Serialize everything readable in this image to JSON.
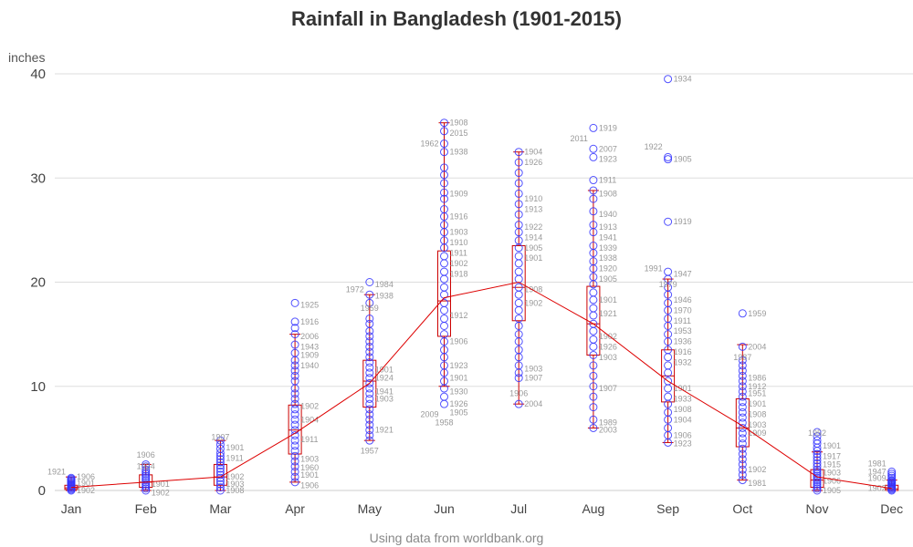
{
  "chart_data": {
    "type": "box",
    "title": "Rainfall in Bangladesh (1901-2015)",
    "footnote": "Using data from worldbank.org",
    "ylabel": "inches",
    "xlabel": "",
    "ylim": [
      0,
      40
    ],
    "yticks": [
      0,
      10,
      20,
      30,
      40
    ],
    "grid": true,
    "categories": [
      "Jan",
      "Feb",
      "Mar",
      "Apr",
      "May",
      "Jun",
      "Jul",
      "Aug",
      "Sep",
      "Oct",
      "Nov",
      "Dec"
    ],
    "colors": {
      "points": "#3333ff",
      "box": "#cc0000",
      "mean_line": "#dd0000",
      "labels": "#999999",
      "grid": "#dddddd"
    },
    "boxes": [
      {
        "month": "Jan",
        "min": 0.0,
        "q1": 0.1,
        "median": 0.25,
        "q3": 0.5,
        "max": 1.3
      },
      {
        "month": "Feb",
        "min": 0.0,
        "q1": 0.3,
        "median": 0.8,
        "q3": 1.5,
        "max": 2.5
      },
      {
        "month": "Mar",
        "min": 0.0,
        "q1": 0.5,
        "median": 1.3,
        "q3": 2.5,
        "max": 4.8
      },
      {
        "month": "Apr",
        "min": 0.8,
        "q1": 3.5,
        "median": 5.8,
        "q3": 8.2,
        "max": 15.0
      },
      {
        "month": "May",
        "min": 4.8,
        "q1": 8.0,
        "median": 10.5,
        "q3": 12.5,
        "max": 18.8
      },
      {
        "month": "Jun",
        "min": 10.0,
        "q1": 14.8,
        "median": 18.2,
        "q3": 23.0,
        "max": 35.3
      },
      {
        "month": "Jul",
        "min": 8.3,
        "q1": 16.3,
        "median": 19.5,
        "q3": 23.5,
        "max": 32.5
      },
      {
        "month": "Aug",
        "min": 6.0,
        "q1": 13.0,
        "median": 16.0,
        "q3": 19.6,
        "max": 28.8
      },
      {
        "month": "Sep",
        "min": 4.6,
        "q1": 8.5,
        "median": 11.0,
        "q3": 13.5,
        "max": 20.3
      },
      {
        "month": "Oct",
        "min": 1.0,
        "q1": 4.2,
        "median": 6.0,
        "q3": 8.8,
        "max": 14.0
      },
      {
        "month": "Nov",
        "min": 0.0,
        "q1": 0.3,
        "median": 1.0,
        "q3": 2.0,
        "max": 3.7
      },
      {
        "month": "Dec",
        "min": 0.0,
        "q1": 0.0,
        "median": 0.15,
        "q3": 0.5,
        "max": 1.0
      }
    ],
    "means": [
      0.3,
      0.8,
      1.3,
      5.5,
      10.3,
      18.5,
      20.0,
      16.0,
      10.5,
      6.2,
      1.3,
      0.2
    ],
    "points": [
      [
        0.0,
        0.1,
        0.2,
        0.3,
        0.4,
        0.5,
        0.6,
        0.7,
        0.8,
        0.9,
        1.0,
        1.1,
        1.2
      ],
      [
        0.0,
        0.2,
        0.4,
        0.6,
        0.8,
        1.0,
        1.2,
        1.4,
        1.6,
        1.8,
        2.0,
        2.3,
        2.5
      ],
      [
        0.0,
        0.3,
        0.6,
        0.9,
        1.2,
        1.5,
        1.8,
        2.1,
        2.4,
        2.7,
        3.0,
        3.3,
        3.6,
        4.0,
        4.4,
        4.8
      ],
      [
        0.8,
        1.3,
        1.8,
        2.3,
        2.8,
        3.3,
        3.8,
        4.3,
        4.8,
        5.3,
        5.8,
        6.3,
        6.8,
        7.3,
        7.8,
        8.3,
        8.8,
        9.3,
        9.8,
        10.5,
        11.0,
        11.5,
        12.0,
        12.5,
        13.2,
        14.0,
        15.0,
        15.6,
        16.2,
        18.0
      ],
      [
        4.8,
        5.3,
        5.8,
        6.3,
        6.8,
        7.3,
        7.8,
        8.3,
        8.8,
        9.3,
        9.8,
        10.3,
        10.8,
        11.3,
        11.8,
        12.3,
        12.8,
        13.3,
        13.8,
        14.3,
        14.8,
        15.3,
        16.0,
        16.5,
        18.0,
        18.8,
        20.0
      ],
      [
        8.3,
        9.0,
        9.8,
        10.5,
        11.3,
        12.0,
        12.8,
        13.5,
        14.3,
        15.0,
        15.8,
        16.5,
        17.3,
        18.0,
        18.8,
        19.5,
        20.3,
        21.0,
        21.8,
        22.5,
        23.3,
        24.0,
        24.8,
        25.5,
        26.3,
        27.0,
        28.0,
        28.6,
        29.5,
        30.3,
        31.0,
        32.5,
        33.3,
        34.5,
        35.3
      ],
      [
        8.3,
        10.8,
        11.3,
        12.0,
        12.8,
        13.5,
        14.3,
        15.0,
        15.8,
        16.5,
        17.3,
        18.0,
        18.8,
        19.5,
        20.3,
        21.0,
        21.8,
        22.5,
        23.3,
        24.0,
        24.8,
        25.5,
        26.5,
        27.5,
        28.5,
        29.5,
        30.5,
        31.5,
        32.5
      ],
      [
        6.0,
        6.8,
        8.0,
        9.0,
        10.0,
        11.0,
        12.0,
        13.0,
        13.8,
        14.5,
        15.3,
        16.0,
        16.8,
        17.5,
        18.3,
        19.0,
        19.8,
        20.5,
        21.3,
        22.0,
        22.8,
        23.5,
        24.8,
        25.5,
        26.8,
        28.0,
        28.8,
        29.8,
        32.0,
        32.8,
        34.8
      ],
      [
        4.6,
        5.3,
        6.0,
        6.8,
        7.5,
        8.3,
        9.0,
        9.8,
        10.5,
        11.3,
        12.0,
        12.8,
        13.5,
        14.3,
        15.0,
        15.8,
        16.5,
        17.3,
        18.0,
        18.8,
        19.5,
        20.3,
        21.0,
        25.8,
        31.8,
        32.0,
        39.5
      ],
      [
        1.0,
        1.5,
        2.0,
        2.5,
        3.0,
        3.5,
        4.0,
        4.5,
        5.0,
        5.5,
        6.0,
        6.5,
        7.0,
        7.5,
        8.0,
        8.5,
        9.0,
        9.5,
        10.0,
        10.5,
        11.0,
        11.5,
        12.0,
        12.5,
        13.8,
        17.0
      ],
      [
        0.0,
        0.2,
        0.4,
        0.6,
        0.8,
        1.0,
        1.2,
        1.4,
        1.6,
        1.8,
        2.0,
        2.3,
        2.6,
        2.9,
        3.2,
        3.5,
        3.8,
        4.1,
        4.5,
        4.8,
        5.2,
        5.6
      ],
      [
        0.0,
        0.1,
        0.2,
        0.3,
        0.4,
        0.5,
        0.6,
        0.7,
        0.8,
        0.9,
        1.0,
        1.2,
        1.4,
        1.6,
        1.8
      ]
    ],
    "labels": [
      [
        {
          "t": "1921",
          "v": 1.8,
          "side": "l"
        },
        {
          "t": "1906",
          "v": 1.3,
          "side": "r"
        },
        {
          "t": "1901",
          "v": 0.7,
          "side": "r"
        },
        {
          "t": "1902",
          "v": 0.0,
          "side": "r"
        }
      ],
      [
        {
          "t": "1906",
          "v": 3.4,
          "side": "c"
        },
        {
          "t": "1924",
          "v": 2.3,
          "side": "c"
        },
        {
          "t": "1901",
          "v": 0.6,
          "side": "r"
        },
        {
          "t": "1902",
          "v": -0.2,
          "side": "r"
        }
      ],
      [
        {
          "t": "1907",
          "v": 5.1,
          "side": "c"
        },
        {
          "t": "1901",
          "v": 4.1,
          "side": "r"
        },
        {
          "t": "1911",
          "v": 3.1,
          "side": "r"
        },
        {
          "t": "1902",
          "v": 1.3,
          "side": "r"
        },
        {
          "t": "1903",
          "v": 0.6,
          "side": "r"
        },
        {
          "t": "1908",
          "v": 0.0,
          "side": "r"
        }
      ],
      [
        {
          "t": "1925",
          "v": 17.8,
          "side": "r"
        },
        {
          "t": "1916",
          "v": 16.2,
          "side": "r"
        },
        {
          "t": "2006",
          "v": 14.8,
          "side": "r"
        },
        {
          "t": "1943",
          "v": 13.8,
          "side": "r"
        },
        {
          "t": "1909",
          "v": 13.0,
          "side": "r"
        },
        {
          "t": "1940",
          "v": 12.0,
          "side": "r"
        },
        {
          "t": "1902",
          "v": 8.1,
          "side": "r"
        },
        {
          "t": "1904",
          "v": 6.8,
          "side": "r"
        },
        {
          "t": "1911",
          "v": 4.9,
          "side": "r"
        },
        {
          "t": "1903",
          "v": 3.0,
          "side": "r"
        },
        {
          "t": "1960",
          "v": 2.2,
          "side": "r"
        },
        {
          "t": "1901",
          "v": 1.5,
          "side": "r"
        },
        {
          "t": "1906",
          "v": 0.5,
          "side": "r"
        }
      ],
      [
        {
          "t": "1984",
          "v": 19.8,
          "side": "r"
        },
        {
          "t": "1938",
          "v": 18.7,
          "side": "r"
        },
        {
          "t": "1972",
          "v": 19.3,
          "side": "l"
        },
        {
          "t": "1959",
          "v": 17.5,
          "side": "c"
        },
        {
          "t": "1901",
          "v": 11.6,
          "side": "r"
        },
        {
          "t": "1924",
          "v": 10.8,
          "side": "r"
        },
        {
          "t": "1941",
          "v": 9.5,
          "side": "r"
        },
        {
          "t": "1903",
          "v": 8.8,
          "side": "r"
        },
        {
          "t": "1921",
          "v": 5.8,
          "side": "r"
        },
        {
          "t": "1957",
          "v": 3.8,
          "side": "c"
        }
      ],
      [
        {
          "t": "1908",
          "v": 35.3,
          "side": "r"
        },
        {
          "t": "2015",
          "v": 34.3,
          "side": "r"
        },
        {
          "t": "1962",
          "v": 33.3,
          "side": "l"
        },
        {
          "t": "1938",
          "v": 32.5,
          "side": "r"
        },
        {
          "t": "1909",
          "v": 28.5,
          "side": "r"
        },
        {
          "t": "1916",
          "v": 26.3,
          "side": "r"
        },
        {
          "t": "1903",
          "v": 24.8,
          "side": "r"
        },
        {
          "t": "1910",
          "v": 23.8,
          "side": "r"
        },
        {
          "t": "1911",
          "v": 22.8,
          "side": "r"
        },
        {
          "t": "1902",
          "v": 21.8,
          "side": "r"
        },
        {
          "t": "1918",
          "v": 20.8,
          "side": "r"
        },
        {
          "t": "1912",
          "v": 16.8,
          "side": "r"
        },
        {
          "t": "1906",
          "v": 14.3,
          "side": "r"
        },
        {
          "t": "1923",
          "v": 12.0,
          "side": "r"
        },
        {
          "t": "1901",
          "v": 10.8,
          "side": "r"
        },
        {
          "t": "1930",
          "v": 9.5,
          "side": "r"
        },
        {
          "t": "1926",
          "v": 8.3,
          "side": "r"
        },
        {
          "t": "1905",
          "v": 7.5,
          "side": "r"
        },
        {
          "t": "2009",
          "v": 7.3,
          "side": "l"
        },
        {
          "t": "1958",
          "v": 6.5,
          "side": "c"
        }
      ],
      [
        {
          "t": "1904",
          "v": 32.5,
          "side": "r"
        },
        {
          "t": "1926",
          "v": 31.5,
          "side": "r"
        },
        {
          "t": "1910",
          "v": 28.0,
          "side": "r"
        },
        {
          "t": "1913",
          "v": 27.0,
          "side": "r"
        },
        {
          "t": "1922",
          "v": 25.3,
          "side": "r"
        },
        {
          "t": "1914",
          "v": 24.3,
          "side": "r"
        },
        {
          "t": "1905",
          "v": 23.3,
          "side": "r"
        },
        {
          "t": "1901",
          "v": 22.3,
          "side": "r"
        },
        {
          "t": "1908",
          "v": 19.3,
          "side": "r"
        },
        {
          "t": "1902",
          "v": 18.0,
          "side": "r"
        },
        {
          "t": "1903",
          "v": 11.7,
          "side": "r"
        },
        {
          "t": "1907",
          "v": 10.8,
          "side": "r"
        },
        {
          "t": "1906",
          "v": 9.3,
          "side": "c"
        },
        {
          "t": "2004",
          "v": 8.3,
          "side": "r"
        }
      ],
      [
        {
          "t": "1919",
          "v": 34.8,
          "side": "r"
        },
        {
          "t": "2011",
          "v": 33.8,
          "side": "l"
        },
        {
          "t": "2007",
          "v": 32.8,
          "side": "r"
        },
        {
          "t": "1923",
          "v": 31.8,
          "side": "r"
        },
        {
          "t": "1911",
          "v": 29.8,
          "side": "r"
        },
        {
          "t": "1908",
          "v": 28.5,
          "side": "r"
        },
        {
          "t": "1940",
          "v": 26.5,
          "side": "r"
        },
        {
          "t": "1913",
          "v": 25.3,
          "side": "r"
        },
        {
          "t": "1941",
          "v": 24.3,
          "side": "r"
        },
        {
          "t": "1939",
          "v": 23.3,
          "side": "r"
        },
        {
          "t": "1938",
          "v": 22.3,
          "side": "r"
        },
        {
          "t": "1920",
          "v": 21.3,
          "side": "r"
        },
        {
          "t": "1905",
          "v": 20.3,
          "side": "r"
        },
        {
          "t": "1901",
          "v": 18.3,
          "side": "r"
        },
        {
          "t": "1921",
          "v": 17.0,
          "side": "r"
        },
        {
          "t": "1902",
          "v": 14.8,
          "side": "r"
        },
        {
          "t": "1926",
          "v": 13.8,
          "side": "r"
        },
        {
          "t": "1903",
          "v": 12.8,
          "side": "r"
        },
        {
          "t": "1907",
          "v": 9.8,
          "side": "r"
        },
        {
          "t": "1989",
          "v": 6.5,
          "side": "r"
        },
        {
          "t": "2003",
          "v": 5.8,
          "side": "r"
        }
      ],
      [
        {
          "t": "1934",
          "v": 39.5,
          "side": "r"
        },
        {
          "t": "1922",
          "v": 33.0,
          "side": "l"
        },
        {
          "t": "1905",
          "v": 31.8,
          "side": "r"
        },
        {
          "t": "1919",
          "v": 25.8,
          "side": "r"
        },
        {
          "t": "1947",
          "v": 20.8,
          "side": "r"
        },
        {
          "t": "1991",
          "v": 21.3,
          "side": "l"
        },
        {
          "t": "1979",
          "v": 19.8,
          "side": "c"
        },
        {
          "t": "1946",
          "v": 18.3,
          "side": "r"
        },
        {
          "t": "1970",
          "v": 17.3,
          "side": "r"
        },
        {
          "t": "1911",
          "v": 16.3,
          "side": "r"
        },
        {
          "t": "1953",
          "v": 15.3,
          "side": "r"
        },
        {
          "t": "1936",
          "v": 14.3,
          "side": "r"
        },
        {
          "t": "1916",
          "v": 13.3,
          "side": "r"
        },
        {
          "t": "1932",
          "v": 12.3,
          "side": "r"
        },
        {
          "t": "1901",
          "v": 9.8,
          "side": "r"
        },
        {
          "t": "1933",
          "v": 8.8,
          "side": "r"
        },
        {
          "t": "1908",
          "v": 7.8,
          "side": "r"
        },
        {
          "t": "1904",
          "v": 6.8,
          "side": "r"
        },
        {
          "t": "1906",
          "v": 5.3,
          "side": "r"
        },
        {
          "t": "1923",
          "v": 4.5,
          "side": "r"
        }
      ],
      [
        {
          "t": "1959",
          "v": 17.0,
          "side": "r"
        },
        {
          "t": "2004",
          "v": 13.8,
          "side": "r"
        },
        {
          "t": "1987",
          "v": 12.8,
          "side": "c"
        },
        {
          "t": "1986",
          "v": 10.8,
          "side": "r"
        },
        {
          "t": "1912",
          "v": 10.0,
          "side": "r"
        },
        {
          "t": "1951",
          "v": 9.3,
          "side": "r"
        },
        {
          "t": "1901",
          "v": 8.3,
          "side": "r"
        },
        {
          "t": "1908",
          "v": 7.3,
          "side": "r"
        },
        {
          "t": "1903",
          "v": 6.3,
          "side": "r"
        },
        {
          "t": "1909",
          "v": 5.5,
          "side": "r"
        },
        {
          "t": "1902",
          "v": 2.0,
          "side": "r"
        },
        {
          "t": "1981",
          "v": 0.7,
          "side": "r"
        }
      ],
      [
        {
          "t": "1952",
          "v": 5.5,
          "side": "c"
        },
        {
          "t": "1901",
          "v": 4.3,
          "side": "r"
        },
        {
          "t": "1917",
          "v": 3.3,
          "side": "r"
        },
        {
          "t": "1915",
          "v": 2.5,
          "side": "r"
        },
        {
          "t": "1903",
          "v": 1.7,
          "side": "r"
        },
        {
          "t": "1906",
          "v": 0.9,
          "side": "r"
        },
        {
          "t": "1905",
          "v": 0.0,
          "side": "r"
        }
      ],
      [
        {
          "t": "1981",
          "v": 2.6,
          "side": "l"
        },
        {
          "t": "1947",
          "v": 1.8,
          "side": "l"
        },
        {
          "t": "1909",
          "v": 1.2,
          "side": "l"
        },
        {
          "t": "1902",
          "v": 0.2,
          "side": "l"
        }
      ]
    ]
  }
}
